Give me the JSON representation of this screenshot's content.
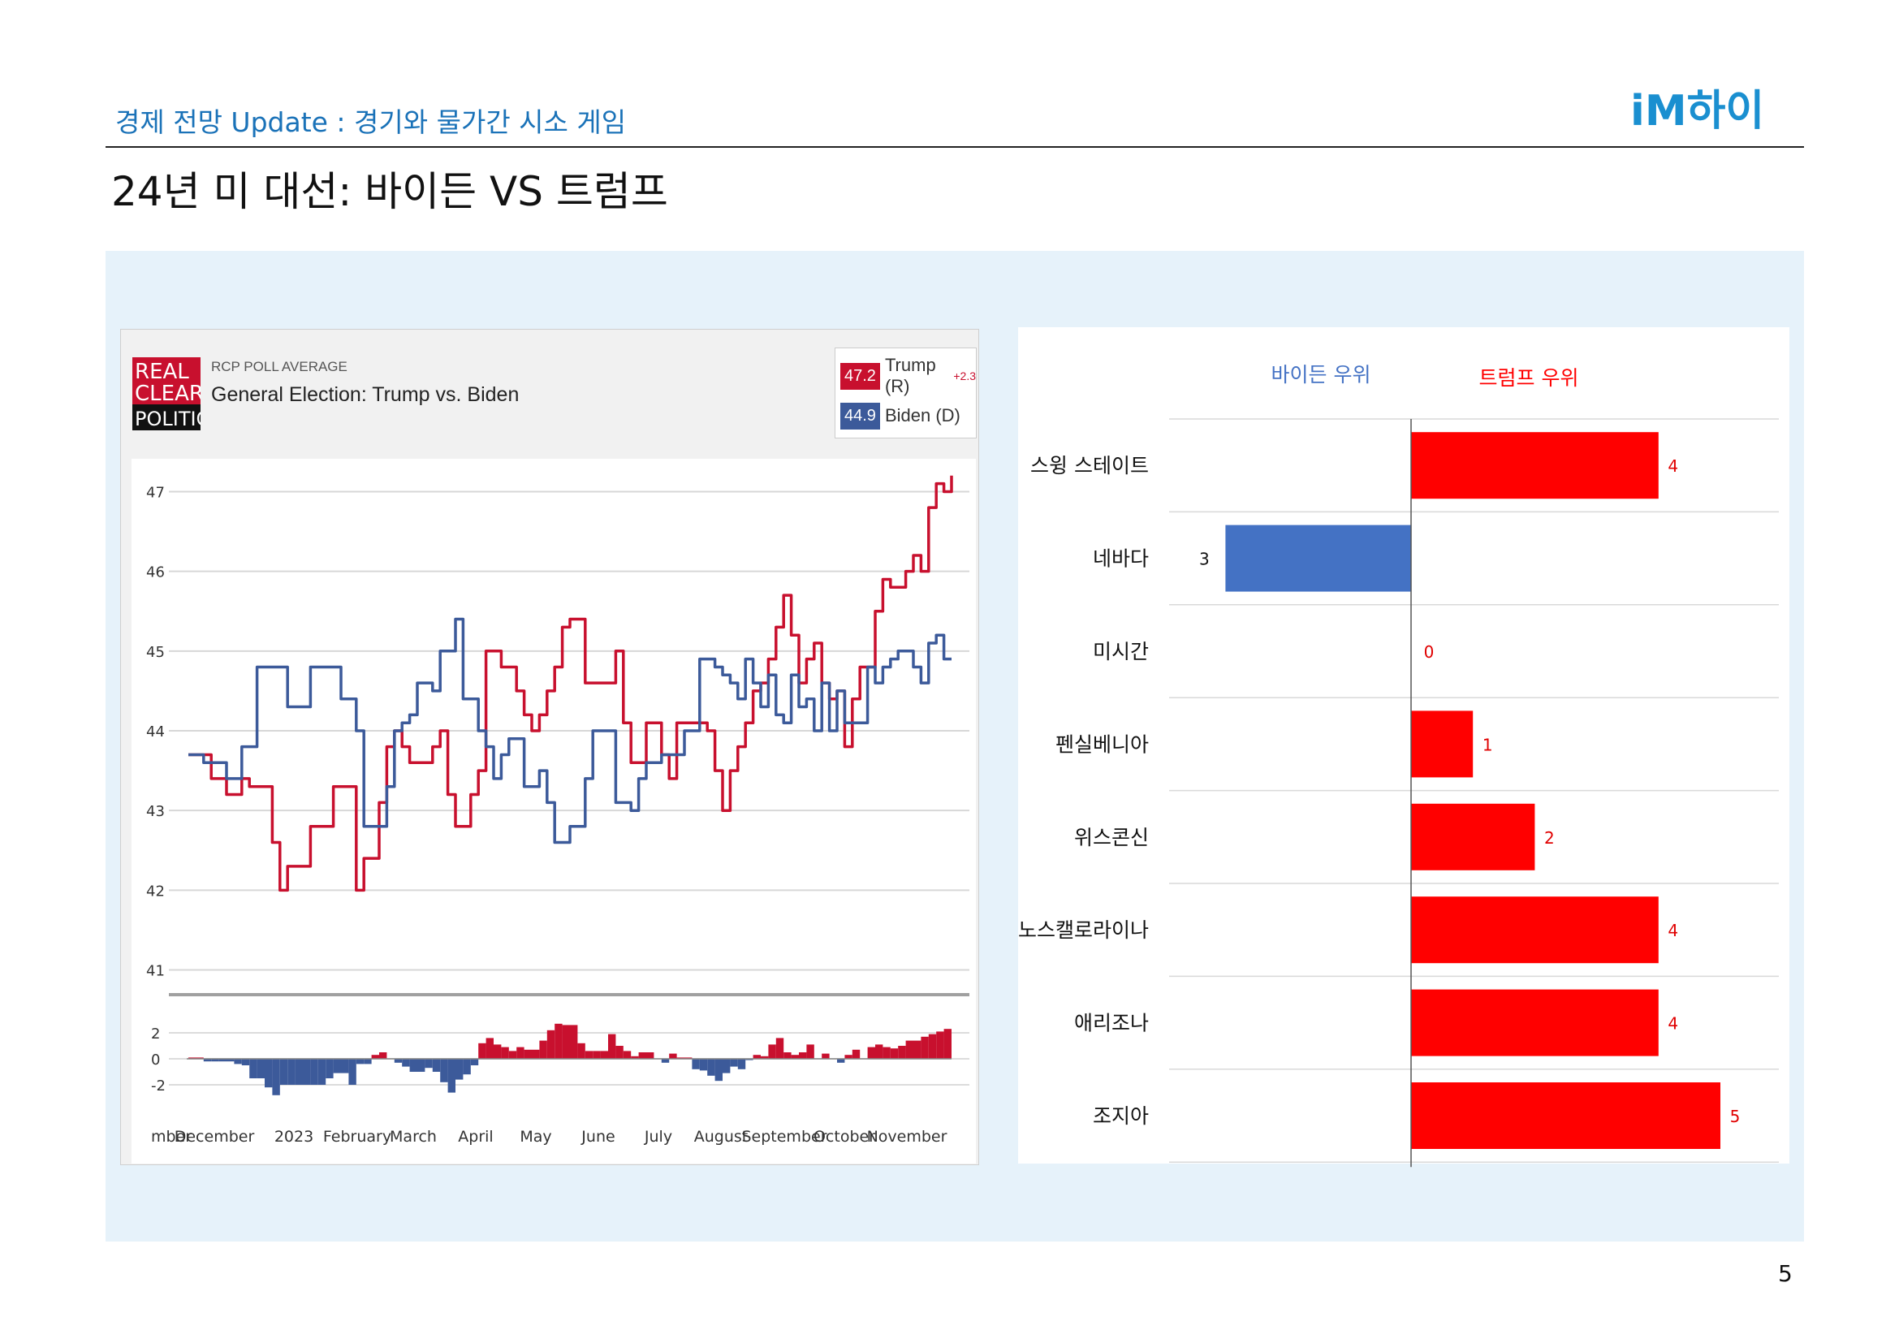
{
  "header": {
    "subtitle": "경제 전망 Update : 경기와 물가간 시소 게임",
    "logo_text": "iM하이",
    "page_title": "24년 미 대선: 바이든 VS 트럼프",
    "page_number": "5"
  },
  "colors": {
    "trump": "#c8102e",
    "biden": "#3c5a9a",
    "bar_red": "#ff0000",
    "bar_blue": "#4472c4",
    "panel_bg": "#e6f2fa"
  },
  "rcp": {
    "logo_lines": [
      "REAL",
      "CLEAR",
      "POLITICS"
    ],
    "kicker": "RCP POLL AVERAGE",
    "heading": "General Election: Trump vs. Biden",
    "legend": [
      {
        "value": "47.2",
        "name": "Trump (R)",
        "delta": "+2.3",
        "color": "#c8102e"
      },
      {
        "value": "44.9",
        "name": "Biden (D)",
        "delta": "",
        "color": "#3c5a9a"
      }
    ]
  },
  "chart_data": [
    {
      "type": "line",
      "title": "General Election: Trump vs. Biden",
      "x_tick_labels": [
        "mber",
        "December",
        "2023",
        "February",
        "March",
        "April",
        "May",
        "June",
        "July",
        "August",
        "September",
        "October",
        "November"
      ],
      "y_ticks": [
        41,
        42,
        43,
        44,
        45,
        46,
        47
      ],
      "ylim": [
        40.7,
        47.3
      ],
      "diff_ticks": [
        "2",
        "0",
        "-2"
      ],
      "diff_ylim": [
        -3,
        3
      ],
      "grid": true,
      "x": [
        0,
        2,
        3,
        4,
        5,
        6,
        7,
        8,
        9,
        10,
        11,
        12,
        13,
        14,
        15,
        16,
        17,
        18,
        19,
        20,
        21,
        22,
        23,
        24,
        25,
        26,
        27,
        28,
        29,
        30,
        31,
        32,
        33,
        34,
        35,
        36,
        37,
        38,
        39,
        40,
        41,
        42,
        43,
        44,
        45,
        46,
        47,
        48,
        49,
        50,
        51,
        52,
        53,
        54,
        55,
        56,
        57,
        58,
        59,
        60,
        61,
        62,
        63,
        64,
        65,
        66,
        67,
        68,
        69,
        70,
        71,
        72,
        73,
        74,
        75,
        76,
        77,
        78,
        79,
        80,
        81,
        82,
        83,
        84,
        85,
        86,
        87,
        88,
        89,
        90,
        91,
        92,
        93,
        94,
        95,
        96,
        97,
        98,
        99,
        100
      ],
      "series": [
        {
          "name": "Trump (R)",
          "values": [
            43.7,
            43.7,
            43.4,
            43.4,
            43.2,
            43.2,
            43.4,
            43.3,
            43.3,
            43.3,
            42.6,
            42.0,
            42.3,
            42.3,
            42.3,
            42.8,
            42.8,
            42.8,
            43.3,
            43.3,
            43.3,
            42.0,
            42.4,
            42.4,
            43.1,
            43.8,
            44.0,
            43.8,
            43.6,
            43.6,
            43.6,
            43.8,
            44.0,
            43.2,
            42.8,
            42.8,
            43.2,
            43.5,
            45.0,
            45.0,
            44.8,
            44.8,
            44.5,
            44.2,
            44.0,
            44.2,
            44.5,
            44.8,
            45.3,
            45.4,
            45.4,
            44.6,
            44.6,
            44.6,
            44.6,
            45.0,
            44.1,
            43.6,
            43.6,
            44.1,
            44.1,
            43.7,
            43.4,
            44.1,
            44.1,
            44.1,
            44.1,
            44.0,
            43.5,
            43.0,
            43.5,
            43.8,
            44.1,
            44.5,
            44.6,
            44.9,
            45.3,
            45.7,
            45.2,
            44.6,
            44.9,
            45.1,
            44.6,
            44.4,
            44.5,
            43.8,
            44.4,
            44.8,
            44.8,
            45.5,
            45.9,
            45.8,
            45.8,
            46.0,
            46.2,
            46.0,
            46.8,
            47.1,
            47.0,
            47.2
          ]
        },
        {
          "name": "Biden (D)",
          "values": [
            43.7,
            43.6,
            43.6,
            43.6,
            43.4,
            43.4,
            43.8,
            43.8,
            44.8,
            44.8,
            44.8,
            44.8,
            44.3,
            44.3,
            44.3,
            44.8,
            44.8,
            44.8,
            44.8,
            44.4,
            44.4,
            44.0,
            42.8,
            42.8,
            42.8,
            43.3,
            44.0,
            44.1,
            44.2,
            44.6,
            44.6,
            44.5,
            45.0,
            45.0,
            45.4,
            44.4,
            44.4,
            44.0,
            43.8,
            43.4,
            43.7,
            43.9,
            43.9,
            43.3,
            43.3,
            43.5,
            43.1,
            42.6,
            42.6,
            42.8,
            42.8,
            43.4,
            44.0,
            44.0,
            44.0,
            43.1,
            43.1,
            43.0,
            43.4,
            43.6,
            43.6,
            43.7,
            43.7,
            43.7,
            44.0,
            44.0,
            44.9,
            44.9,
            44.8,
            44.7,
            44.6,
            44.4,
            44.9,
            44.6,
            44.3,
            44.7,
            44.2,
            44.1,
            44.7,
            44.3,
            44.4,
            44.0,
            44.6,
            44.0,
            44.5,
            44.1,
            44.1,
            44.1,
            44.8,
            44.6,
            44.8,
            44.9,
            45.0,
            45.0,
            44.8,
            44.6,
            45.1,
            45.2,
            44.9,
            44.9
          ]
        }
      ]
    },
    {
      "type": "bar",
      "orientation": "horizontal",
      "legend": [
        {
          "name": "바이든 우위",
          "color": "#4472c4"
        },
        {
          "name": "트럼프 우위",
          "color": "#ff0000"
        }
      ],
      "categories": [
        "스윙 스테이트",
        "네바다",
        "미시간",
        "펜실베니아",
        "위스콘신",
        "노스캘로라이나",
        "애리조나",
        "조지아"
      ],
      "values": [
        4,
        -3,
        0,
        1,
        2,
        4,
        4,
        5
      ],
      "labels": [
        "4",
        "3",
        "0",
        "1",
        "2",
        "4",
        "4",
        "5"
      ],
      "xlim": [
        -4,
        6
      ]
    }
  ]
}
